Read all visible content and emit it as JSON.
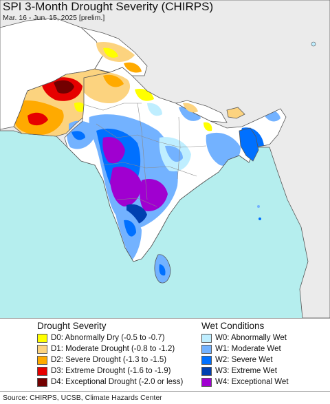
{
  "header": {
    "title": "SPI 3-Month Drought Severity (CHIRPS)",
    "subtitle": "Mar. 16 - Jun. 15, 2025 [prelim.]"
  },
  "map": {
    "region": "South Asia",
    "colors": {
      "ocean": "#b5eeee",
      "land_outside": "#ebebeb",
      "land_normal": "#ffffff",
      "borders": "#555555"
    }
  },
  "legend": {
    "drought": {
      "heading": "Drought Severity",
      "items": [
        {
          "label": "D0: Abnormally Dry (-0.5 to -0.7)",
          "color": "#ffff00"
        },
        {
          "label": "D1: Moderate Drought (-0.8 to -1.2)",
          "color": "#fcd37f"
        },
        {
          "label": "D2: Severe Drought (-1.3 to -1.5)",
          "color": "#ffaa00"
        },
        {
          "label": "D3: Extreme Drought (-1.6 to -1.9)",
          "color": "#e60000"
        },
        {
          "label": "D4: Exceptional Drought (-2.0 or less)",
          "color": "#730000"
        }
      ]
    },
    "wet": {
      "heading": "Wet Conditions",
      "items": [
        {
          "label": "W0: Abnormally Wet",
          "color": "#bfeeff"
        },
        {
          "label": "W1: Moderate Wet",
          "color": "#73b2ff"
        },
        {
          "label": "W2: Severe Wet",
          "color": "#0070ff"
        },
        {
          "label": "W3: Extreme Wet",
          "color": "#0040b0"
        },
        {
          "label": "W4: Exceptional Wet",
          "color": "#a000d0"
        }
      ]
    }
  },
  "footer": {
    "source": "Source: CHIRPS, UCSB, Climate Hazards Center"
  }
}
